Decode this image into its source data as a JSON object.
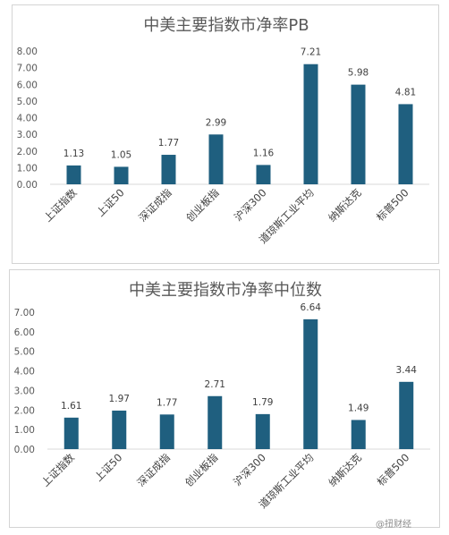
{
  "bar_color": "#1f5f7f",
  "watermark": "@扭财经",
  "chart_data": [
    {
      "type": "bar",
      "title": "中美主要指数市净率PB",
      "categories": [
        "上证指数",
        "上证50",
        "深证成指",
        "创业板指",
        "沪深300",
        "道琼斯工业平均",
        "纳斯达克",
        "标普500"
      ],
      "values": [
        1.13,
        1.05,
        1.77,
        2.99,
        1.16,
        7.21,
        5.98,
        4.81
      ],
      "value_labels": [
        "1.13",
        "1.05",
        "1.77",
        "2.99",
        "1.16",
        "7.21",
        "5.98",
        "4.81"
      ],
      "ylim": [
        0,
        8
      ],
      "y_ticks": [
        "0.00",
        "1.00",
        "2.00",
        "3.00",
        "4.00",
        "5.00",
        "6.00",
        "7.00",
        "8.00"
      ],
      "grid": false,
      "legend": "none"
    },
    {
      "type": "bar",
      "title": "中美主要指数市净率中位数",
      "categories": [
        "上证指数",
        "上证50",
        "深证成指",
        "创业板指",
        "沪深300",
        "道琼斯工业平均",
        "纳斯达克",
        "标普500"
      ],
      "values": [
        1.61,
        1.97,
        1.77,
        2.71,
        1.79,
        6.64,
        1.49,
        3.44
      ],
      "value_labels": [
        "1.61",
        "1.97",
        "1.77",
        "2.71",
        "1.79",
        "6.64",
        "1.49",
        "3.44"
      ],
      "ylim": [
        0,
        7
      ],
      "y_ticks": [
        "0.00",
        "1.00",
        "2.00",
        "3.00",
        "4.00",
        "5.00",
        "6.00",
        "7.00"
      ],
      "grid": false,
      "legend": "none"
    }
  ]
}
